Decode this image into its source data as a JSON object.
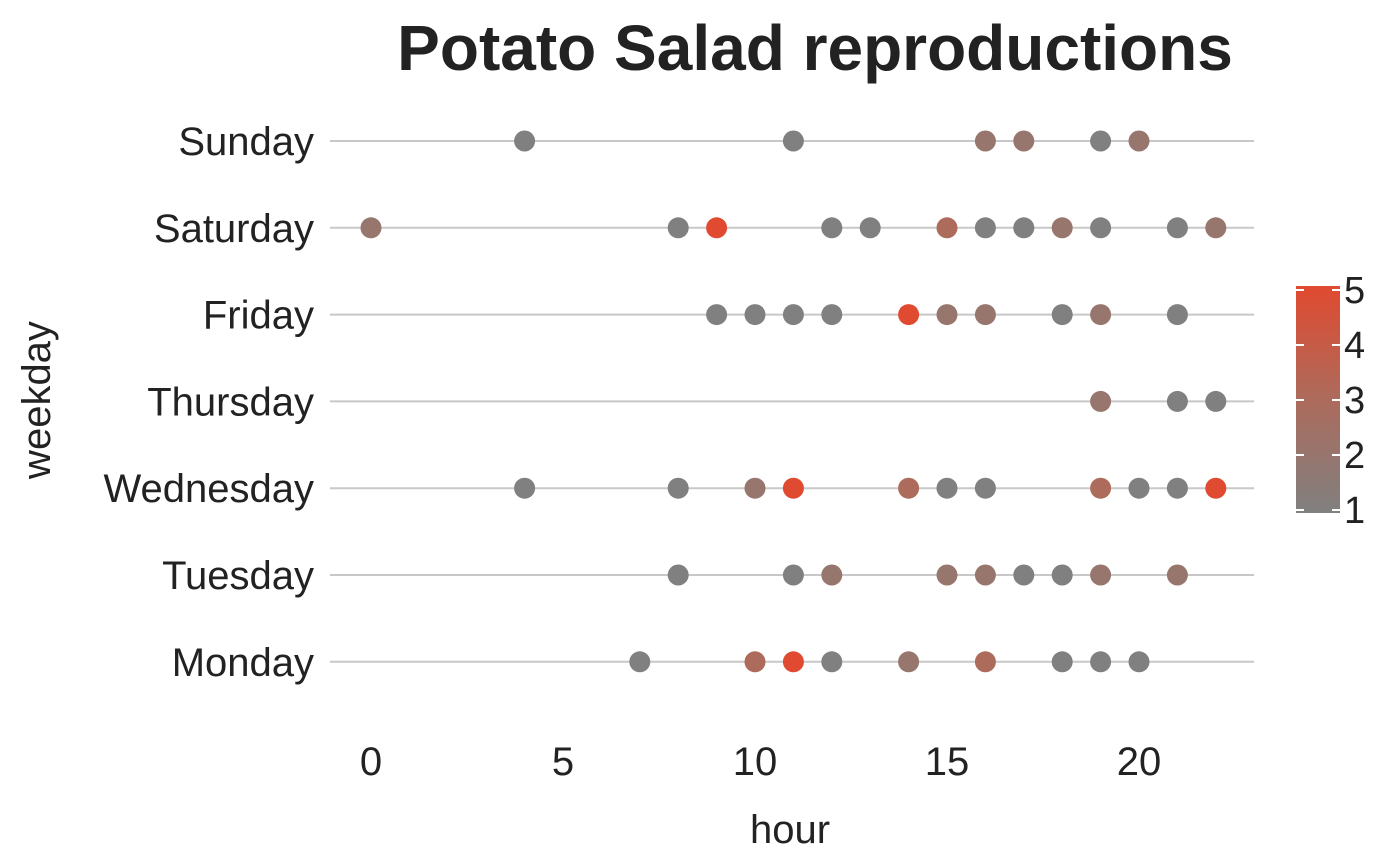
{
  "chart_data": {
    "type": "scatter",
    "title": "Potato Salad reproductions",
    "xlabel": "hour",
    "ylabel": "weekday",
    "xlim": [
      -1,
      23
    ],
    "xticks": [
      0,
      5,
      10,
      15,
      20
    ],
    "grid": "horizontal-lines-per-category",
    "categories": [
      "Monday",
      "Tuesday",
      "Wednesday",
      "Thursday",
      "Friday",
      "Saturday",
      "Sunday"
    ],
    "color_scale": {
      "low": "#808080",
      "mid": "#ad6b5c",
      "high": "#e04a30",
      "min": 1,
      "max": 5,
      "ticks": [
        1,
        2,
        3,
        4,
        5
      ],
      "legend_position": "right"
    },
    "points": [
      {
        "weekday": "Sunday",
        "hour": 4,
        "count": 1
      },
      {
        "weekday": "Sunday",
        "hour": 11,
        "count": 1
      },
      {
        "weekday": "Sunday",
        "hour": 16,
        "count": 2
      },
      {
        "weekday": "Sunday",
        "hour": 17,
        "count": 2
      },
      {
        "weekday": "Sunday",
        "hour": 19,
        "count": 1
      },
      {
        "weekday": "Sunday",
        "hour": 20,
        "count": 2
      },
      {
        "weekday": "Saturday",
        "hour": 0,
        "count": 2
      },
      {
        "weekday": "Saturday",
        "hour": 8,
        "count": 1
      },
      {
        "weekday": "Saturday",
        "hour": 9,
        "count": 5
      },
      {
        "weekday": "Saturday",
        "hour": 12,
        "count": 1
      },
      {
        "weekday": "Saturday",
        "hour": 13,
        "count": 1
      },
      {
        "weekday": "Saturday",
        "hour": 15,
        "count": 3
      },
      {
        "weekday": "Saturday",
        "hour": 16,
        "count": 1
      },
      {
        "weekday": "Saturday",
        "hour": 17,
        "count": 1
      },
      {
        "weekday": "Saturday",
        "hour": 18,
        "count": 2
      },
      {
        "weekday": "Saturday",
        "hour": 19,
        "count": 1
      },
      {
        "weekday": "Saturday",
        "hour": 21,
        "count": 1
      },
      {
        "weekday": "Saturday",
        "hour": 22,
        "count": 2
      },
      {
        "weekday": "Friday",
        "hour": 9,
        "count": 1
      },
      {
        "weekday": "Friday",
        "hour": 10,
        "count": 1
      },
      {
        "weekday": "Friday",
        "hour": 11,
        "count": 1
      },
      {
        "weekday": "Friday",
        "hour": 12,
        "count": 1
      },
      {
        "weekday": "Friday",
        "hour": 14,
        "count": 5
      },
      {
        "weekday": "Friday",
        "hour": 15,
        "count": 2
      },
      {
        "weekday": "Friday",
        "hour": 16,
        "count": 2
      },
      {
        "weekday": "Friday",
        "hour": 18,
        "count": 1
      },
      {
        "weekday": "Friday",
        "hour": 19,
        "count": 2
      },
      {
        "weekday": "Friday",
        "hour": 21,
        "count": 1
      },
      {
        "weekday": "Thursday",
        "hour": 19,
        "count": 2
      },
      {
        "weekday": "Thursday",
        "hour": 21,
        "count": 1
      },
      {
        "weekday": "Thursday",
        "hour": 22,
        "count": 1
      },
      {
        "weekday": "Wednesday",
        "hour": 4,
        "count": 1
      },
      {
        "weekday": "Wednesday",
        "hour": 8,
        "count": 1
      },
      {
        "weekday": "Wednesday",
        "hour": 10,
        "count": 2
      },
      {
        "weekday": "Wednesday",
        "hour": 11,
        "count": 5
      },
      {
        "weekday": "Wednesday",
        "hour": 14,
        "count": 3
      },
      {
        "weekday": "Wednesday",
        "hour": 15,
        "count": 1
      },
      {
        "weekday": "Wednesday",
        "hour": 16,
        "count": 1
      },
      {
        "weekday": "Wednesday",
        "hour": 19,
        "count": 3
      },
      {
        "weekday": "Wednesday",
        "hour": 20,
        "count": 1
      },
      {
        "weekday": "Wednesday",
        "hour": 21,
        "count": 1
      },
      {
        "weekday": "Wednesday",
        "hour": 22,
        "count": 5
      },
      {
        "weekday": "Tuesday",
        "hour": 8,
        "count": 1
      },
      {
        "weekday": "Tuesday",
        "hour": 11,
        "count": 1
      },
      {
        "weekday": "Tuesday",
        "hour": 12,
        "count": 2
      },
      {
        "weekday": "Tuesday",
        "hour": 15,
        "count": 2
      },
      {
        "weekday": "Tuesday",
        "hour": 16,
        "count": 2
      },
      {
        "weekday": "Tuesday",
        "hour": 17,
        "count": 1
      },
      {
        "weekday": "Tuesday",
        "hour": 18,
        "count": 1
      },
      {
        "weekday": "Tuesday",
        "hour": 19,
        "count": 2
      },
      {
        "weekday": "Tuesday",
        "hour": 21,
        "count": 2
      },
      {
        "weekday": "Monday",
        "hour": 7,
        "count": 1
      },
      {
        "weekday": "Monday",
        "hour": 10,
        "count": 3
      },
      {
        "weekday": "Monday",
        "hour": 11,
        "count": 5
      },
      {
        "weekday": "Monday",
        "hour": 12,
        "count": 1
      },
      {
        "weekday": "Monday",
        "hour": 14,
        "count": 2
      },
      {
        "weekday": "Monday",
        "hour": 16,
        "count": 3
      },
      {
        "weekday": "Monday",
        "hour": 18,
        "count": 1
      },
      {
        "weekday": "Monday",
        "hour": 19,
        "count": 1
      },
      {
        "weekday": "Monday",
        "hour": 20,
        "count": 1
      }
    ]
  }
}
